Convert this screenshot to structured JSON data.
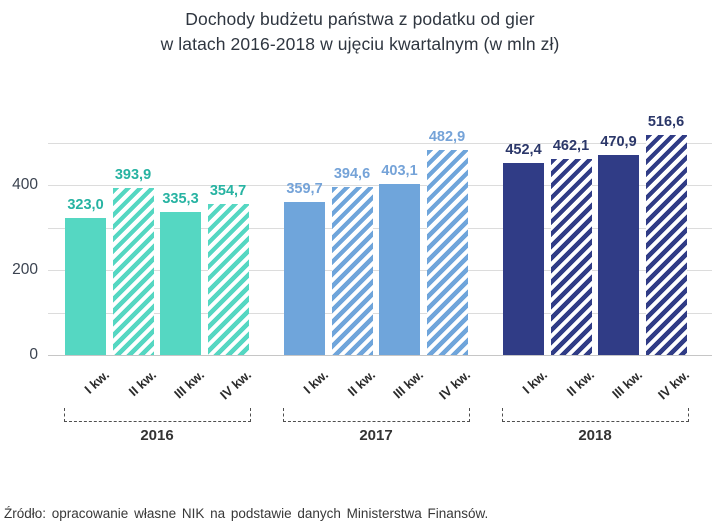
{
  "title": {
    "line1": "Dochody budżetu państwa z podatku od gier",
    "line2": "w latach 2016-2018 w ujęciu kwartalnym (w mln zł)"
  },
  "source": "Źródło: opracowanie własne NIK na podstawie danych Ministerstwa Finansów.",
  "chart_data": {
    "type": "bar",
    "title": "Dochody budżetu państwa z podatku od gier w latach 2016-2018 w ujęciu kwartalnym (w mln zł)",
    "unit": "mln zł",
    "categories": [
      "I kw.",
      "II kw.",
      "III kw.",
      "IV kw."
    ],
    "ylim": [
      0,
      550
    ],
    "grid_step": 100,
    "grid_max": 500,
    "grid_on": true,
    "ytick_values": [
      0,
      200,
      400
    ],
    "ytick_labels": [
      "0",
      "200",
      "400"
    ],
    "legend_position": "none",
    "series": [
      {
        "name": "2016",
        "color": "#55d7c2",
        "label_color": "#27b3a2",
        "values": [
          323.0,
          393.9,
          335.3,
          354.7
        ],
        "labels": [
          "323,0",
          "393,9",
          "335,3",
          "354,7"
        ],
        "hatched": [
          false,
          true,
          false,
          true
        ]
      },
      {
        "name": "2017",
        "color": "#6fa5db",
        "label_color": "#75a3d8",
        "values": [
          359.7,
          394.6,
          403.1,
          482.9
        ],
        "labels": [
          "359,7",
          "394,6",
          "403,1",
          "482,9"
        ],
        "hatched": [
          false,
          true,
          false,
          true
        ]
      },
      {
        "name": "2018",
        "color": "#303c86",
        "label_color": "#2b3769",
        "values": [
          452.4,
          462.1,
          470.9,
          516.6
        ],
        "labels": [
          "452,4",
          "462,1",
          "470,9",
          "516,6"
        ],
        "hatched": [
          false,
          true,
          false,
          true
        ]
      }
    ]
  }
}
